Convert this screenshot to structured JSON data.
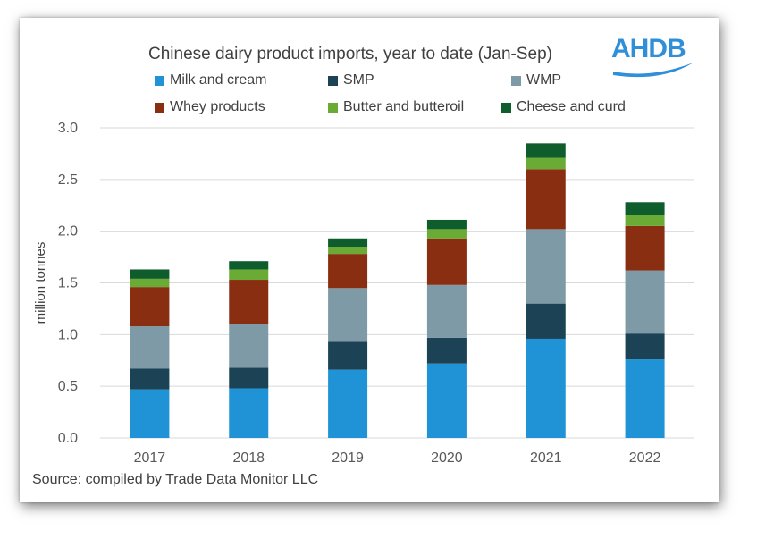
{
  "chart_data": {
    "type": "bar",
    "stacked": true,
    "title": "Chinese dairy product imports, year to date (Jan-Sep)",
    "ylabel": "million tonnes",
    "xlabel": "",
    "ylim": [
      0,
      3.0
    ],
    "yticks": [
      "0.0",
      "0.5",
      "1.0",
      "1.5",
      "2.0",
      "2.5",
      "3.0"
    ],
    "categories": [
      "2017",
      "2018",
      "2019",
      "2020",
      "2021",
      "2022"
    ],
    "grid": true,
    "legend_position": "top",
    "series": [
      {
        "name": "Milk and cream",
        "color": "#1f93d6",
        "values": [
          0.47,
          0.48,
          0.66,
          0.72,
          0.96,
          0.76
        ]
      },
      {
        "name": "SMP",
        "color": "#1c4256",
        "values": [
          0.2,
          0.2,
          0.27,
          0.25,
          0.34,
          0.25
        ]
      },
      {
        "name": "WMP",
        "color": "#7d9aa6",
        "values": [
          0.41,
          0.42,
          0.52,
          0.51,
          0.72,
          0.61
        ]
      },
      {
        "name": "Whey products",
        "color": "#8a2e12",
        "values": [
          0.38,
          0.43,
          0.33,
          0.45,
          0.58,
          0.43
        ]
      },
      {
        "name": "Butter and butteroil",
        "color": "#6aab35",
        "values": [
          0.08,
          0.1,
          0.07,
          0.09,
          0.11,
          0.11
        ]
      },
      {
        "name": "Cheese and curd",
        "color": "#0f5c2c",
        "values": [
          0.09,
          0.08,
          0.08,
          0.09,
          0.14,
          0.12
        ]
      }
    ]
  },
  "logo": {
    "text": "AHDB"
  },
  "source": "Source: compiled by Trade Data Monitor LLC"
}
